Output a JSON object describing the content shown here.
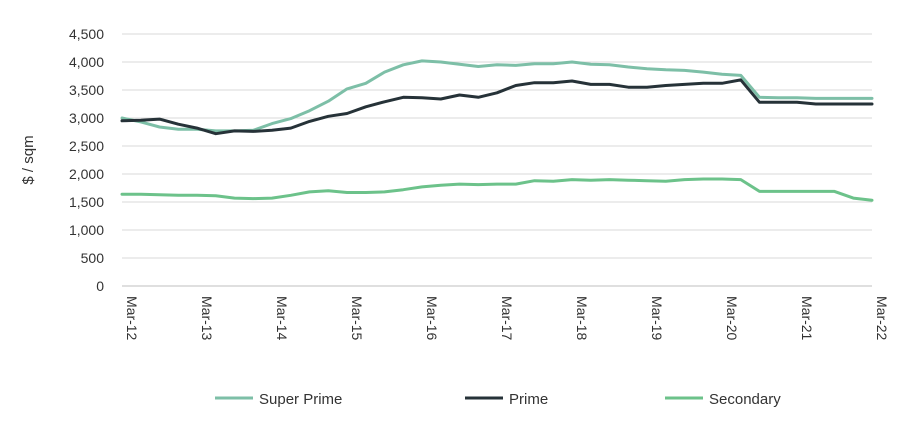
{
  "chart_data": {
    "type": "line",
    "ylabel": "$ / sqm",
    "xlabel": "",
    "title": "",
    "ylim": [
      0,
      4500
    ],
    "yticks": [
      0,
      500,
      1000,
      1500,
      2000,
      2500,
      3000,
      3500,
      4000,
      4500
    ],
    "ytick_labels": [
      "0",
      "500",
      "1,000",
      "1,500",
      "2,000",
      "2,500",
      "3,000",
      "3,500",
      "4,000",
      "4,500"
    ],
    "xlim": [
      2012.0,
      2022.0
    ],
    "xtick_values": [
      2012,
      2013,
      2014,
      2015,
      2016,
      2017,
      2018,
      2019,
      2020,
      2021,
      2022
    ],
    "xtick_labels": [
      "Mar-12",
      "Mar-13",
      "Mar-14",
      "Mar-15",
      "Mar-16",
      "Mar-17",
      "Mar-18",
      "Mar-19",
      "Mar-20",
      "Mar-21",
      "Mar-22"
    ],
    "grid": "horizontal",
    "legend_position": "bottom",
    "series": [
      {
        "name": "Super Prime",
        "color": "#7dbfa7",
        "x": [
          2012.0,
          2012.25,
          2012.5,
          2012.75,
          2013.0,
          2013.25,
          2013.5,
          2013.75,
          2014.0,
          2014.25,
          2014.5,
          2014.75,
          2015.0,
          2015.25,
          2015.5,
          2015.75,
          2016.0,
          2016.25,
          2016.5,
          2016.75,
          2017.0,
          2017.25,
          2017.5,
          2017.75,
          2018.0,
          2018.25,
          2018.5,
          2018.75,
          2019.0,
          2019.25,
          2019.5,
          2019.75,
          2020.0,
          2020.25,
          2020.5,
          2020.75,
          2021.0,
          2021.25,
          2021.5,
          2021.75,
          2022.0
        ],
        "values": [
          3000,
          2930,
          2840,
          2800,
          2800,
          2770,
          2770,
          2780,
          2900,
          2990,
          3130,
          3300,
          3520,
          3620,
          3820,
          3950,
          4020,
          4000,
          3960,
          3920,
          3950,
          3940,
          3970,
          3970,
          4000,
          3960,
          3950,
          3910,
          3880,
          3860,
          3850,
          3820,
          3780,
          3760,
          3370,
          3360,
          3360,
          3350,
          3350,
          3350,
          3350
        ]
      },
      {
        "name": "Prime",
        "color": "#263238",
        "x": [
          2012.0,
          2012.25,
          2012.5,
          2012.75,
          2013.0,
          2013.25,
          2013.5,
          2013.75,
          2014.0,
          2014.25,
          2014.5,
          2014.75,
          2015.0,
          2015.25,
          2015.5,
          2015.75,
          2016.0,
          2016.25,
          2016.5,
          2016.75,
          2017.0,
          2017.25,
          2017.5,
          2017.75,
          2018.0,
          2018.25,
          2018.5,
          2018.75,
          2019.0,
          2019.25,
          2019.5,
          2019.75,
          2020.0,
          2020.25,
          2020.5,
          2020.75,
          2021.0,
          2021.25,
          2021.5,
          2021.75,
          2022.0
        ],
        "values": [
          2950,
          2960,
          2980,
          2890,
          2820,
          2720,
          2770,
          2760,
          2780,
          2820,
          2940,
          3030,
          3080,
          3200,
          3290,
          3370,
          3360,
          3340,
          3410,
          3370,
          3450,
          3580,
          3630,
          3630,
          3660,
          3600,
          3600,
          3550,
          3550,
          3580,
          3600,
          3620,
          3620,
          3680,
          3280,
          3280,
          3280,
          3250,
          3250,
          3250,
          3250
        ]
      },
      {
        "name": "Secondary",
        "color": "#6cc28a",
        "x": [
          2012.0,
          2012.25,
          2012.5,
          2012.75,
          2013.0,
          2013.25,
          2013.5,
          2013.75,
          2014.0,
          2014.25,
          2014.5,
          2014.75,
          2015.0,
          2015.25,
          2015.5,
          2015.75,
          2016.0,
          2016.25,
          2016.5,
          2016.75,
          2017.0,
          2017.25,
          2017.5,
          2017.75,
          2018.0,
          2018.25,
          2018.5,
          2018.75,
          2019.0,
          2019.25,
          2019.5,
          2019.75,
          2020.0,
          2020.25,
          2020.5,
          2020.75,
          2021.0,
          2021.25,
          2021.5,
          2021.75,
          2022.0
        ],
        "values": [
          1640,
          1640,
          1630,
          1620,
          1620,
          1610,
          1570,
          1560,
          1570,
          1620,
          1680,
          1700,
          1670,
          1670,
          1680,
          1720,
          1770,
          1800,
          1820,
          1810,
          1820,
          1820,
          1880,
          1870,
          1900,
          1890,
          1900,
          1890,
          1880,
          1870,
          1900,
          1910,
          1910,
          1900,
          1690,
          1690,
          1690,
          1690,
          1690,
          1570,
          1530
        ]
      }
    ]
  }
}
